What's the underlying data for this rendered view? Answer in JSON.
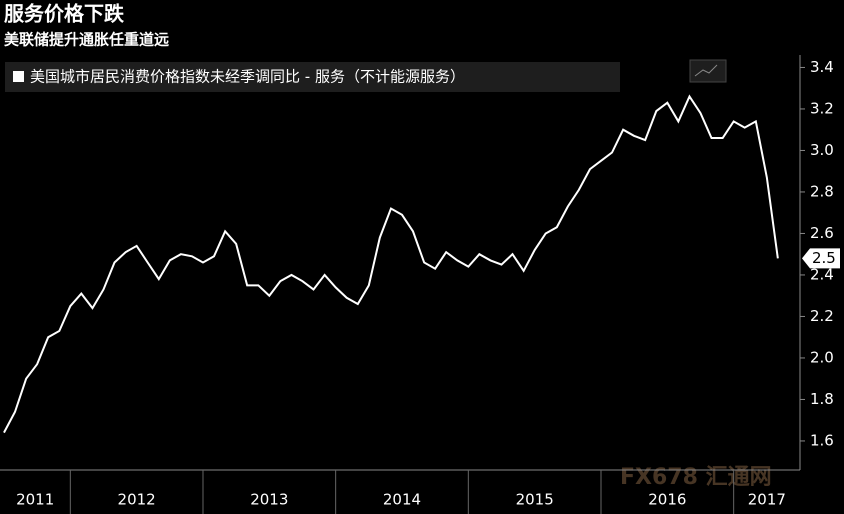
{
  "chart_data": {
    "type": "line",
    "title": "服务价格下跌",
    "subtitle": "美联储提升通胀任重道远",
    "watermark": "FX678 汇通网",
    "x": [
      2011.5,
      2011.583,
      2011.667,
      2011.75,
      2011.833,
      2011.917,
      2012,
      2012.083,
      2012.167,
      2012.25,
      2012.333,
      2012.417,
      2012.5,
      2012.583,
      2012.667,
      2012.75,
      2012.833,
      2012.917,
      2013,
      2013.083,
      2013.167,
      2013.25,
      2013.333,
      2013.417,
      2013.5,
      2013.583,
      2013.667,
      2013.75,
      2013.833,
      2013.917,
      2014,
      2014.083,
      2014.167,
      2014.25,
      2014.333,
      2014.417,
      2014.5,
      2014.583,
      2014.667,
      2014.75,
      2014.833,
      2014.917,
      2015,
      2015.083,
      2015.167,
      2015.25,
      2015.333,
      2015.417,
      2015.5,
      2015.583,
      2015.667,
      2015.75,
      2015.833,
      2015.917,
      2016,
      2016.083,
      2016.167,
      2016.25,
      2016.333,
      2016.417,
      2016.5,
      2016.583,
      2016.667,
      2016.75,
      2016.833,
      2016.917,
      2017,
      2017.083,
      2017.167,
      2017.25,
      2017.333
    ],
    "series": [
      {
        "name": "美国城市居民消费价格指数未经季调同比 - 服务（不计能源服务）",
        "color": "#ffffff",
        "values": [
          1.64,
          1.74,
          1.9,
          1.97,
          2.1,
          2.13,
          2.25,
          2.31,
          2.24,
          2.33,
          2.46,
          2.51,
          2.54,
          2.46,
          2.38,
          2.47,
          2.5,
          2.49,
          2.46,
          2.49,
          2.61,
          2.55,
          2.35,
          2.35,
          2.3,
          2.37,
          2.4,
          2.37,
          2.33,
          2.4,
          2.34,
          2.29,
          2.26,
          2.35,
          2.58,
          2.72,
          2.69,
          2.61,
          2.46,
          2.43,
          2.51,
          2.47,
          2.44,
          2.5,
          2.47,
          2.45,
          2.5,
          2.42,
          2.52,
          2.6,
          2.63,
          2.73,
          2.81,
          2.91,
          2.95,
          2.99,
          3.1,
          3.07,
          3.05,
          3.19,
          3.23,
          3.14,
          3.26,
          3.18,
          3.06,
          3.06,
          3.14,
          3.11,
          3.14,
          2.87,
          2.48
        ],
        "value_labels": [
          null,
          null,
          null,
          null,
          null,
          null,
          null,
          null,
          null,
          null,
          null,
          null,
          null,
          null,
          null,
          null,
          null,
          null,
          null,
          null,
          null,
          null,
          null,
          null,
          null,
          null,
          null,
          null,
          null,
          null,
          null,
          null,
          null,
          null,
          null,
          null,
          null,
          null,
          null,
          null,
          null,
          null,
          null,
          null,
          null,
          null,
          null,
          null,
          null,
          null,
          null,
          null,
          null,
          null,
          null,
          null,
          null,
          null,
          null,
          null,
          null,
          null,
          null,
          null,
          null,
          null,
          null,
          null,
          null,
          null,
          "2.5"
        ]
      }
    ],
    "xlim": [
      2011.47,
      2017.5
    ],
    "xticks": [
      {
        "value": 2011,
        "label": "2011"
      },
      {
        "value": 2012,
        "label": "2012"
      },
      {
        "value": 2013,
        "label": "2013"
      },
      {
        "value": 2014,
        "label": "2014"
      },
      {
        "value": 2015,
        "label": "2015"
      },
      {
        "value": 2016,
        "label": "2016"
      },
      {
        "value": 2017,
        "label": "2017"
      }
    ],
    "ylim": [
      1.46,
      3.46
    ],
    "yticks": [
      1.6,
      1.8,
      {
        "value": 2,
        "label": "2.0"
      },
      2.2,
      2.4,
      2.6,
      2.8,
      {
        "value": 3,
        "label": "3.0"
      },
      3.2,
      3.4
    ],
    "grid": false
  }
}
